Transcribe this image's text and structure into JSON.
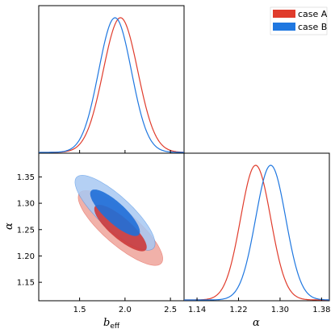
{
  "chart_data": {
    "type": "corner",
    "parameters": [
      "b_eff",
      "α"
    ],
    "axis_labels": {
      "b_eff": {
        "main": "b",
        "sub": "eff"
      },
      "alpha": "α"
    },
    "x_ticks_beff": [
      "1.5",
      "2.0",
      "2.5"
    ],
    "x_ticks_alpha": [
      "1.14",
      "1.22",
      "1.30",
      "1.38"
    ],
    "y_ticks_alpha": [
      "1.35",
      "1.30",
      "1.25",
      "1.20",
      "1.15"
    ],
    "legend": [
      {
        "label": "case A",
        "color": "#e03c2c"
      },
      {
        "label": "case B",
        "color": "#1f77e0"
      }
    ],
    "legend_placement": "top-right",
    "series": [
      {
        "name": "case A",
        "color": "#e03c2c",
        "fill_inner": "#cc3a3a",
        "fill_outer": "#f0a8a0",
        "b_eff_marginal": {
          "mean": 1.95,
          "sigma": 0.19
        },
        "alpha_marginal": {
          "mean": 1.253,
          "sigma": 0.029
        },
        "correlation": -0.82
      },
      {
        "name": "case B",
        "color": "#1f77e0",
        "fill_inner": "#1f6fd8",
        "fill_outer": "#a7c8f2",
        "b_eff_marginal": {
          "mean": 1.89,
          "sigma": 0.18
        },
        "alpha_marginal": {
          "mean": 1.282,
          "sigma": 0.029
        },
        "correlation": -0.82
      }
    ],
    "b_eff_range": [
      1.05,
      2.65
    ],
    "alpha_range": [
      1.115,
      1.395
    ]
  }
}
